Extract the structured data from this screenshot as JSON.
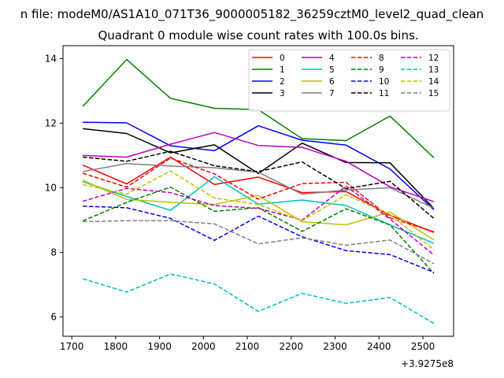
{
  "chart_data": {
    "type": "line",
    "suptitle": "n file: modeM0/AS1A10_071T36_9000005182_36259cztM0_level2_quad_clean",
    "title": "Quadrant 0 module wise count rates with 100.0s bins.",
    "xlabel": "",
    "ylabel": "",
    "x_offset_label": "+3.9275e8",
    "xlim": [
      1680,
      2570
    ],
    "ylim": [
      5.4,
      14.4
    ],
    "xticks": [
      1700,
      1800,
      1900,
      2000,
      2100,
      2200,
      2300,
      2400,
      2500
    ],
    "yticks": [
      6,
      8,
      10,
      12,
      14
    ],
    "grid": false,
    "legend_position": "top-right",
    "x": [
      1725,
      1825,
      1925,
      2025,
      2125,
      2225,
      2325,
      2425,
      2525
    ],
    "series": [
      {
        "name": "0",
        "color": "#ff0000",
        "style": "solid",
        "values": [
          10.7,
          10.12,
          10.95,
          10.1,
          10.33,
          9.85,
          9.88,
          9.15,
          8.62
        ]
      },
      {
        "name": "1",
        "color": "#008000",
        "style": "solid",
        "values": [
          12.52,
          13.97,
          12.77,
          12.46,
          12.42,
          11.52,
          11.46,
          12.22,
          10.93
        ]
      },
      {
        "name": "2",
        "color": "#0000ff",
        "style": "solid",
        "values": [
          12.03,
          12.01,
          11.3,
          11.15,
          11.92,
          11.47,
          11.32,
          10.58,
          9.32
        ]
      },
      {
        "name": "3",
        "color": "#000000",
        "style": "solid",
        "values": [
          11.83,
          11.68,
          11.08,
          11.33,
          10.44,
          11.38,
          10.78,
          10.77,
          9.36
        ]
      },
      {
        "name": "4",
        "color": "#bf00bf",
        "style": "solid",
        "values": [
          11.0,
          10.95,
          11.35,
          11.71,
          11.31,
          11.25,
          10.82,
          10.03,
          9.57
        ]
      },
      {
        "name": "5",
        "color": "#00bfbf",
        "style": "solid",
        "values": [
          10.19,
          9.73,
          9.3,
          10.34,
          9.49,
          9.62,
          9.45,
          8.85,
          8.28
        ]
      },
      {
        "name": "6",
        "color": "#bfbf00",
        "style": "solid",
        "values": [
          10.23,
          9.64,
          9.55,
          9.48,
          9.76,
          8.95,
          8.85,
          9.25,
          8.38
        ]
      },
      {
        "name": "7",
        "color": "#808080",
        "style": "solid",
        "values": [
          10.5,
          10.75,
          10.67,
          10.62,
          10.48,
          9.8,
          9.93,
          10.0,
          9.37
        ]
      },
      {
        "name": "8",
        "color": "#ff0000",
        "style": "dashed",
        "values": [
          10.45,
          10.02,
          10.92,
          10.43,
          9.65,
          10.13,
          10.17,
          9.07,
          8.64
        ]
      },
      {
        "name": "9",
        "color": "#008000",
        "style": "dashed",
        "values": [
          8.97,
          9.55,
          10.02,
          9.27,
          9.38,
          8.65,
          9.35,
          8.85,
          7.35
        ]
      },
      {
        "name": "10",
        "color": "#0000ff",
        "style": "dashed",
        "values": [
          9.43,
          9.38,
          9.05,
          8.37,
          9.12,
          8.48,
          8.05,
          7.93,
          7.38
        ]
      },
      {
        "name": "11",
        "color": "#000000",
        "style": "dashed",
        "values": [
          10.95,
          10.82,
          11.13,
          10.68,
          10.5,
          10.8,
          9.97,
          10.2,
          9.05
        ]
      },
      {
        "name": "12",
        "color": "#bf00bf",
        "style": "dashed",
        "values": [
          9.58,
          9.98,
          9.85,
          9.45,
          9.36,
          9.0,
          10.05,
          9.03,
          7.92
        ]
      },
      {
        "name": "13",
        "color": "#00bfbf",
        "style": "dashed",
        "values": [
          7.18,
          6.77,
          7.33,
          7.02,
          6.17,
          6.73,
          6.42,
          6.6,
          5.8
        ]
      },
      {
        "name": "14",
        "color": "#bfbf00",
        "style": "dashed",
        "values": [
          10.1,
          9.8,
          10.52,
          9.68,
          9.48,
          8.98,
          9.78,
          9.17,
          8.08
        ]
      },
      {
        "name": "15",
        "color": "#808080",
        "style": "dashed",
        "values": [
          8.95,
          8.98,
          8.98,
          8.88,
          8.26,
          8.45,
          8.22,
          8.38,
          7.65
        ]
      }
    ]
  }
}
